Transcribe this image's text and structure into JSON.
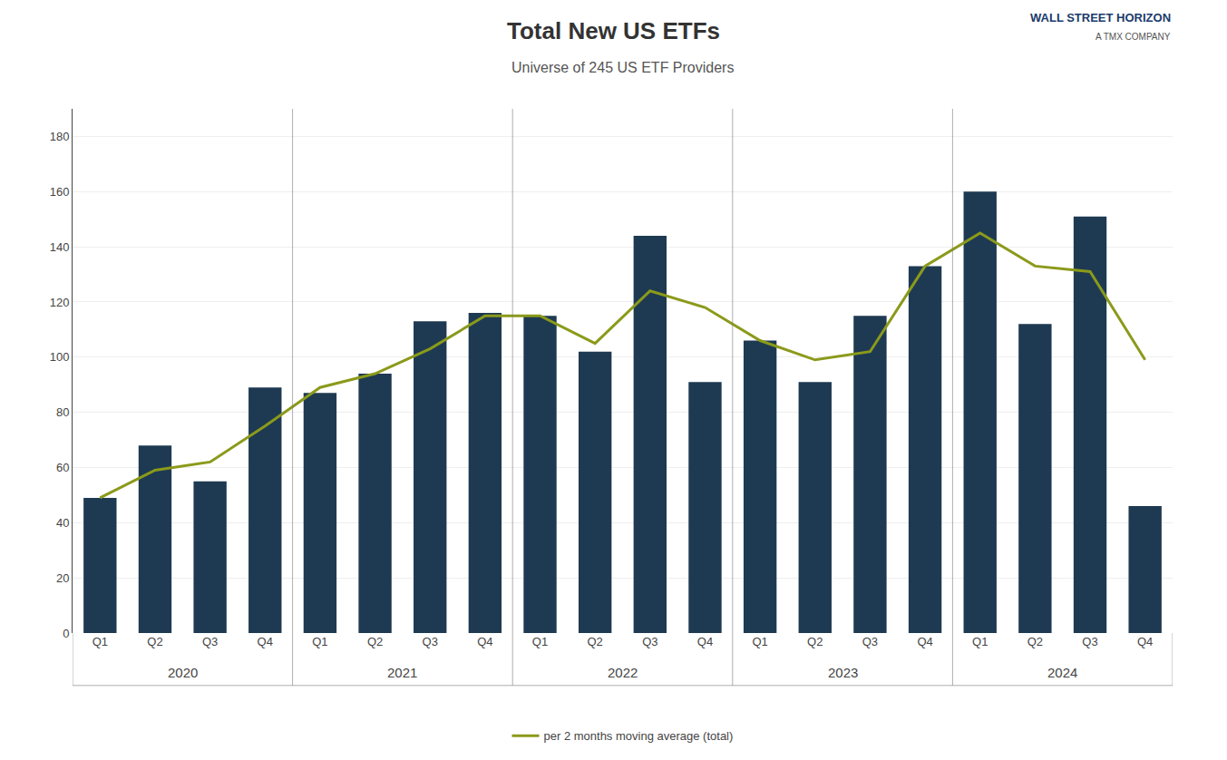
{
  "chart_data": {
    "type": "bar",
    "title": "Total New US ETFs",
    "subtitle": "Universe of 245 US ETF Providers",
    "categories": [
      "Q1",
      "Q2",
      "Q3",
      "Q4",
      "Q1",
      "Q2",
      "Q3",
      "Q4",
      "Q1",
      "Q2",
      "Q3",
      "Q4",
      "Q1",
      "Q2",
      "Q3",
      "Q4",
      "Q1",
      "Q2",
      "Q3",
      "Q4"
    ],
    "groups": [
      "2020",
      "2021",
      "2022",
      "2023",
      "2024"
    ],
    "series": [
      {
        "type": "bar",
        "color": "#1e3a52",
        "values": [
          49,
          68,
          55,
          89,
          87,
          94,
          113,
          116,
          115,
          102,
          144,
          91,
          106,
          91,
          115,
          133,
          160,
          112,
          151,
          46
        ]
      },
      {
        "type": "line",
        "name": "per 2 months moving average (total)",
        "color": "#8b9a1a",
        "values": [
          49,
          59,
          62,
          75,
          89,
          94,
          103,
          115,
          115,
          105,
          124,
          118,
          106,
          99,
          102,
          133,
          145,
          133,
          131,
          99
        ]
      }
    ],
    "ylim": [
      0,
      190
    ],
    "yticks": [
      0,
      20,
      40,
      60,
      80,
      100,
      120,
      140,
      160,
      180
    ],
    "grid": true,
    "legend": "bottom",
    "annotations": [
      "WALL STREET HORIZON",
      "A TMX COMPANY"
    ]
  }
}
